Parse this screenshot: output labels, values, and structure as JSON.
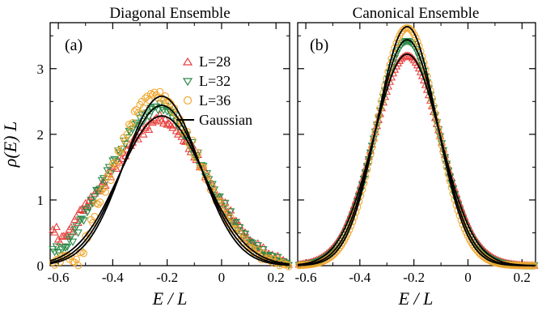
{
  "figure": {
    "ylabel": "ρ(E) L"
  },
  "chart_data": [
    {
      "type": "scatter",
      "panel_label": "(a)",
      "title": "Diagonal Ensemble",
      "xlabel": "E / L",
      "ylabel": "ρ(E) L",
      "xlim": [
        -0.63,
        0.25
      ],
      "ylim": [
        0,
        3.7
      ],
      "xticks": [
        -0.6,
        -0.4,
        -0.2,
        0,
        0.2
      ],
      "xtick_labels": [
        "-0.6",
        "-0.4",
        "-0.2",
        "0",
        "0.2"
      ],
      "yticks": [
        0,
        1,
        2,
        3
      ],
      "ytick_labels": [
        "0",
        "1",
        "2",
        "3"
      ],
      "grid": false,
      "legend_position": "top-right",
      "series": [
        {
          "name": "L=28",
          "marker": "triangle-up",
          "color": "#e8413e",
          "x": [
            -0.62,
            -0.6,
            -0.58,
            -0.56,
            -0.54,
            -0.52,
            -0.5,
            -0.48,
            -0.46,
            -0.44,
            -0.42,
            -0.4,
            -0.38,
            -0.36,
            -0.34,
            -0.32,
            -0.3,
            -0.28,
            -0.26,
            -0.24,
            -0.22,
            -0.2,
            -0.18,
            -0.16,
            -0.14,
            -0.12,
            -0.1,
            -0.08,
            -0.06,
            -0.04,
            -0.02,
            0,
            0.02,
            0.04,
            0.06,
            0.08,
            0.1,
            0.12,
            0.14,
            0.16,
            0.18,
            0.2,
            0.22,
            0.24
          ],
          "y": [
            0.55,
            0.4,
            0.45,
            0.55,
            0.7,
            0.85,
            0.95,
            1.05,
            1.15,
            1.25,
            1.4,
            1.5,
            1.6,
            1.72,
            1.85,
            1.95,
            2.05,
            2.1,
            2.2,
            2.25,
            2.2,
            2.15,
            2.1,
            2.0,
            1.9,
            1.78,
            1.65,
            1.5,
            1.35,
            1.2,
            1.05,
            0.92,
            0.8,
            0.68,
            0.57,
            0.46,
            0.37,
            0.3,
            0.23,
            0.17,
            0.13,
            0.1,
            0.07,
            0.05
          ]
        },
        {
          "name": "L=32",
          "marker": "triangle-down",
          "color": "#2a8a47",
          "x": [
            -0.62,
            -0.6,
            -0.58,
            -0.56,
            -0.54,
            -0.52,
            -0.5,
            -0.48,
            -0.46,
            -0.44,
            -0.42,
            -0.4,
            -0.38,
            -0.36,
            -0.34,
            -0.32,
            -0.3,
            -0.28,
            -0.26,
            -0.24,
            -0.22,
            -0.2,
            -0.18,
            -0.16,
            -0.14,
            -0.12,
            -0.1,
            -0.08,
            -0.06,
            -0.04,
            -0.02,
            0,
            0.02,
            0.04,
            0.06,
            0.08,
            0.1,
            0.12,
            0.14,
            0.16,
            0.18,
            0.2,
            0.22,
            0.24
          ],
          "y": [
            0.25,
            0.2,
            0.28,
            0.4,
            0.55,
            0.7,
            0.85,
            1.0,
            1.15,
            1.3,
            1.45,
            1.6,
            1.75,
            1.9,
            2.05,
            2.15,
            2.25,
            2.3,
            2.4,
            2.42,
            2.4,
            2.35,
            2.25,
            2.12,
            1.98,
            1.83,
            1.68,
            1.52,
            1.36,
            1.2,
            1.05,
            0.91,
            0.78,
            0.66,
            0.54,
            0.44,
            0.35,
            0.27,
            0.2,
            0.15,
            0.11,
            0.08,
            0.05,
            0.04
          ]
        },
        {
          "name": "L=36",
          "marker": "circle",
          "color": "#f0a830",
          "x": [
            -0.62,
            -0.6,
            -0.58,
            -0.56,
            -0.54,
            -0.52,
            -0.5,
            -0.48,
            -0.46,
            -0.44,
            -0.42,
            -0.4,
            -0.38,
            -0.36,
            -0.34,
            -0.32,
            -0.3,
            -0.28,
            -0.26,
            -0.24,
            -0.22,
            -0.2,
            -0.18,
            -0.16,
            -0.14,
            -0.12,
            -0.1,
            -0.08,
            -0.06,
            -0.04,
            -0.02,
            0,
            0.02,
            0.04,
            0.06,
            0.08,
            0.1,
            0.12,
            0.14,
            0.16,
            0.18,
            0.2,
            0.22,
            0.24
          ],
          "y": [
            0.05,
            0.1,
            0.15,
            0.1,
            0.05,
            0.2,
            0.45,
            0.7,
            0.95,
            1.15,
            1.35,
            1.55,
            1.75,
            1.95,
            2.15,
            2.35,
            2.45,
            2.55,
            2.62,
            2.6,
            2.55,
            2.48,
            2.35,
            2.2,
            2.03,
            1.86,
            1.68,
            1.5,
            1.32,
            1.15,
            0.98,
            0.83,
            0.69,
            0.56,
            0.45,
            0.35,
            0.27,
            0.2,
            0.14,
            0.1,
            0.07,
            0.05,
            0.03,
            0.02
          ]
        }
      ],
      "curves": [
        {
          "name": "Gaussian",
          "mu": -0.22,
          "peak": 2.58,
          "sigma": 0.138
        },
        {
          "mu": -0.22,
          "peak": 2.44,
          "sigma": 0.146
        },
        {
          "mu": -0.22,
          "peak": 2.28,
          "sigma": 0.156
        }
      ]
    },
    {
      "type": "scatter",
      "panel_label": "(b)",
      "title": "Canonical Ensemble",
      "xlabel": "E / L",
      "xlim": [
        -0.63,
        0.25
      ],
      "ylim": [
        0,
        3.7
      ],
      "xticks": [
        -0.6,
        -0.4,
        -0.2,
        0,
        0.2
      ],
      "xtick_labels": [
        "-0.6",
        "-0.4",
        "-0.2",
        "0",
        "0.2"
      ],
      "yticks": [
        0,
        1,
        2,
        3
      ],
      "grid": false,
      "series": [
        {
          "name": "L=28",
          "marker": "triangle-up",
          "color": "#e8413e",
          "mu": -0.225,
          "peak": 3.2,
          "sigma": 0.124
        },
        {
          "name": "L=32",
          "marker": "triangle-down",
          "color": "#2a8a47",
          "mu": -0.225,
          "peak": 3.42,
          "sigma": 0.116
        },
        {
          "name": "L=36",
          "marker": "circle",
          "color": "#f0a830",
          "mu": -0.225,
          "peak": 3.62,
          "sigma": 0.11
        }
      ],
      "curves": [
        {
          "mu": -0.225,
          "peak": 3.22,
          "sigma": 0.124
        },
        {
          "mu": -0.225,
          "peak": 3.44,
          "sigma": 0.116
        },
        {
          "mu": -0.225,
          "peak": 3.64,
          "sigma": 0.11
        }
      ]
    }
  ]
}
